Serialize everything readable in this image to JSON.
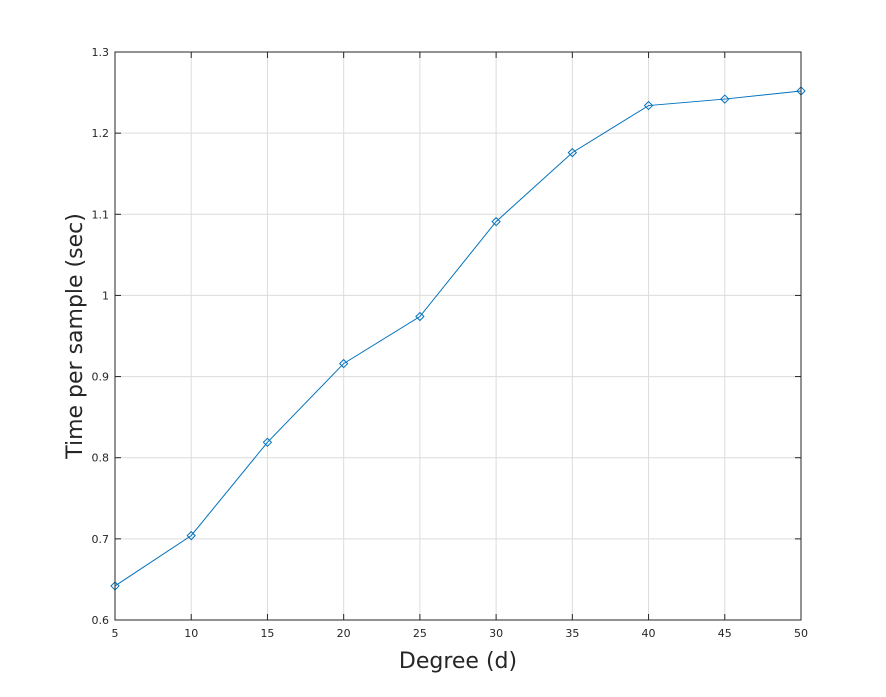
{
  "chart_data": {
    "type": "line",
    "title": "",
    "xlabel": "Degree (d)",
    "ylabel": "Time per sample (sec)",
    "xlim": [
      5,
      50
    ],
    "ylim": [
      0.6,
      1.3
    ],
    "xticks": [
      5,
      10,
      15,
      20,
      25,
      30,
      35,
      40,
      45,
      50
    ],
    "yticks": [
      0.6,
      0.7,
      0.8,
      0.9,
      1,
      1.1,
      1.2,
      1.3
    ],
    "xtick_labels": [
      "5",
      "10",
      "15",
      "20",
      "25",
      "30",
      "35",
      "40",
      "45",
      "50"
    ],
    "ytick_labels": [
      "0.6",
      "0.7",
      "0.8",
      "0.9",
      "1",
      "1.1",
      "1.2",
      "1.3"
    ],
    "grid": true,
    "series": [
      {
        "x": [
          5,
          10,
          15,
          20,
          25,
          30,
          35,
          40,
          45,
          50
        ],
        "y": [
          0.642,
          0.704,
          0.819,
          0.916,
          0.974,
          1.091,
          1.176,
          1.234,
          1.242,
          1.252
        ],
        "color": "#0072bd",
        "marker": "diamond"
      }
    ]
  }
}
